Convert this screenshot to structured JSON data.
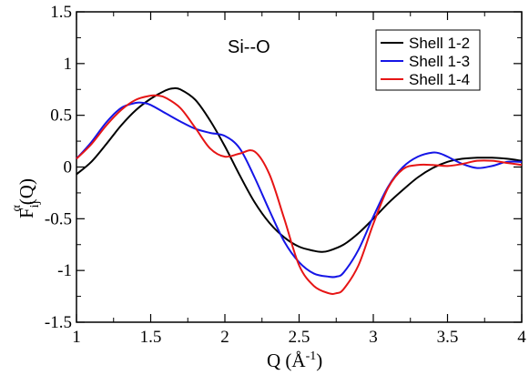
{
  "chart_data": {
    "type": "line",
    "annotation": "Si--O",
    "xlabel": {
      "main": "Q (",
      "unit": "Å",
      "exp": "-1",
      "close": ")"
    },
    "ylabel": {
      "main": "F",
      "sub": "ij",
      "sup": "α",
      "tail": "(Q)"
    },
    "xlim": [
      1,
      4
    ],
    "ylim": [
      -1.5,
      1.5
    ],
    "xticks": [
      1,
      1.5,
      2,
      2.5,
      3,
      3.5,
      4
    ],
    "xtick_labels": [
      "1",
      "1.5",
      "2",
      "2.5",
      "3",
      "3.5",
      "4"
    ],
    "yticks": [
      1.5,
      1,
      0.5,
      0,
      -0.5,
      -1,
      -1.5
    ],
    "ytick_labels": [
      "1.5",
      "1",
      "0.5",
      "0",
      "-0.5",
      "-1",
      "-1.5"
    ],
    "grid": false,
    "legend_position": "top-right",
    "series": [
      {
        "name": "Shell 1-2",
        "color": "#000000",
        "x": [
          1.0,
          1.1,
          1.2,
          1.3,
          1.4,
          1.5,
          1.6,
          1.65,
          1.7,
          1.8,
          1.9,
          2.0,
          2.1,
          2.2,
          2.3,
          2.4,
          2.5,
          2.6,
          2.65,
          2.7,
          2.8,
          2.9,
          3.0,
          3.1,
          3.2,
          3.3,
          3.4,
          3.5,
          3.6,
          3.7,
          3.75,
          3.8,
          3.9,
          4.0
        ],
        "y": [
          -0.07,
          0.05,
          0.22,
          0.4,
          0.55,
          0.66,
          0.74,
          0.76,
          0.75,
          0.65,
          0.45,
          0.2,
          -0.08,
          -0.34,
          -0.54,
          -0.68,
          -0.77,
          -0.81,
          -0.82,
          -0.81,
          -0.75,
          -0.64,
          -0.5,
          -0.35,
          -0.22,
          -0.1,
          -0.01,
          0.05,
          0.08,
          0.09,
          0.09,
          0.09,
          0.08,
          0.06
        ]
      },
      {
        "name": "Shell 1-3",
        "color": "#1515e6",
        "x": [
          1.0,
          1.1,
          1.2,
          1.3,
          1.4,
          1.45,
          1.5,
          1.6,
          1.7,
          1.8,
          1.9,
          2.0,
          2.1,
          2.2,
          2.3,
          2.4,
          2.5,
          2.6,
          2.7,
          2.75,
          2.8,
          2.9,
          3.0,
          3.1,
          3.2,
          3.3,
          3.4,
          3.45,
          3.5,
          3.6,
          3.7,
          3.8,
          3.9,
          4.0
        ],
        "y": [
          0.08,
          0.24,
          0.43,
          0.57,
          0.62,
          0.62,
          0.6,
          0.52,
          0.44,
          0.37,
          0.33,
          0.3,
          0.18,
          -0.1,
          -0.42,
          -0.72,
          -0.92,
          -1.03,
          -1.06,
          -1.06,
          -1.02,
          -0.8,
          -0.48,
          -0.19,
          0.0,
          0.1,
          0.14,
          0.13,
          0.1,
          0.03,
          -0.01,
          0.01,
          0.05,
          0.05
        ]
      },
      {
        "name": "Shell 1-4",
        "color": "#e61515",
        "x": [
          1.0,
          1.1,
          1.2,
          1.3,
          1.4,
          1.5,
          1.55,
          1.6,
          1.7,
          1.8,
          1.9,
          2.0,
          2.1,
          2.2,
          2.3,
          2.4,
          2.5,
          2.6,
          2.7,
          2.75,
          2.8,
          2.9,
          3.0,
          3.1,
          3.2,
          3.3,
          3.4,
          3.5,
          3.6,
          3.7,
          3.8,
          3.9,
          4.0
        ],
        "y": [
          0.08,
          0.22,
          0.4,
          0.55,
          0.65,
          0.69,
          0.69,
          0.67,
          0.57,
          0.38,
          0.18,
          0.1,
          0.13,
          0.15,
          -0.07,
          -0.5,
          -0.95,
          -1.15,
          -1.22,
          -1.22,
          -1.18,
          -0.95,
          -0.55,
          -0.2,
          -0.02,
          0.02,
          0.02,
          0.01,
          0.03,
          0.06,
          0.06,
          0.04,
          0.02
        ]
      }
    ]
  }
}
